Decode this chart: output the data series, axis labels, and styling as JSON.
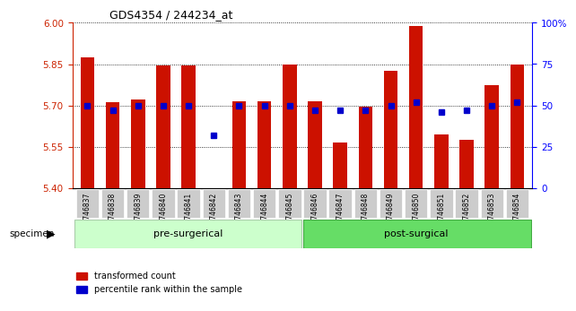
{
  "title": "GDS4354 / 244234_at",
  "samples": [
    "GSM746837",
    "GSM746838",
    "GSM746839",
    "GSM746840",
    "GSM746841",
    "GSM746842",
    "GSM746843",
    "GSM746844",
    "GSM746845",
    "GSM746846",
    "GSM746847",
    "GSM746848",
    "GSM746849",
    "GSM746850",
    "GSM746851",
    "GSM746852",
    "GSM746853",
    "GSM746854"
  ],
  "bar_values": [
    5.875,
    5.71,
    5.72,
    5.845,
    5.845,
    5.4,
    5.715,
    5.715,
    5.85,
    5.715,
    5.565,
    5.695,
    5.825,
    5.99,
    5.595,
    5.575,
    5.775,
    5.85
  ],
  "dot_values_pct": [
    50,
    47,
    50,
    50,
    50,
    32,
    50,
    50,
    50,
    47,
    47,
    47,
    50,
    52,
    46,
    47,
    50,
    52
  ],
  "pre_surgical_count": 9,
  "post_surgical_count": 9,
  "ylim_left": [
    5.4,
    6.0
  ],
  "ylim_right": [
    0,
    100
  ],
  "yticks_left": [
    5.4,
    5.55,
    5.7,
    5.85,
    6.0
  ],
  "yticks_right": [
    0,
    25,
    50,
    75,
    100
  ],
  "bar_color": "#cc1100",
  "dot_color": "#0000cc",
  "pre_color": "#ccffcc",
  "post_color": "#66dd66",
  "bg_color": "#dddddd",
  "grid_color": "#000000",
  "legend_items": [
    "transformed count",
    "percentile rank within the sample"
  ],
  "specimen_label": "specimen",
  "pre_label": "pre-surgerical",
  "post_label": "post-surgical"
}
